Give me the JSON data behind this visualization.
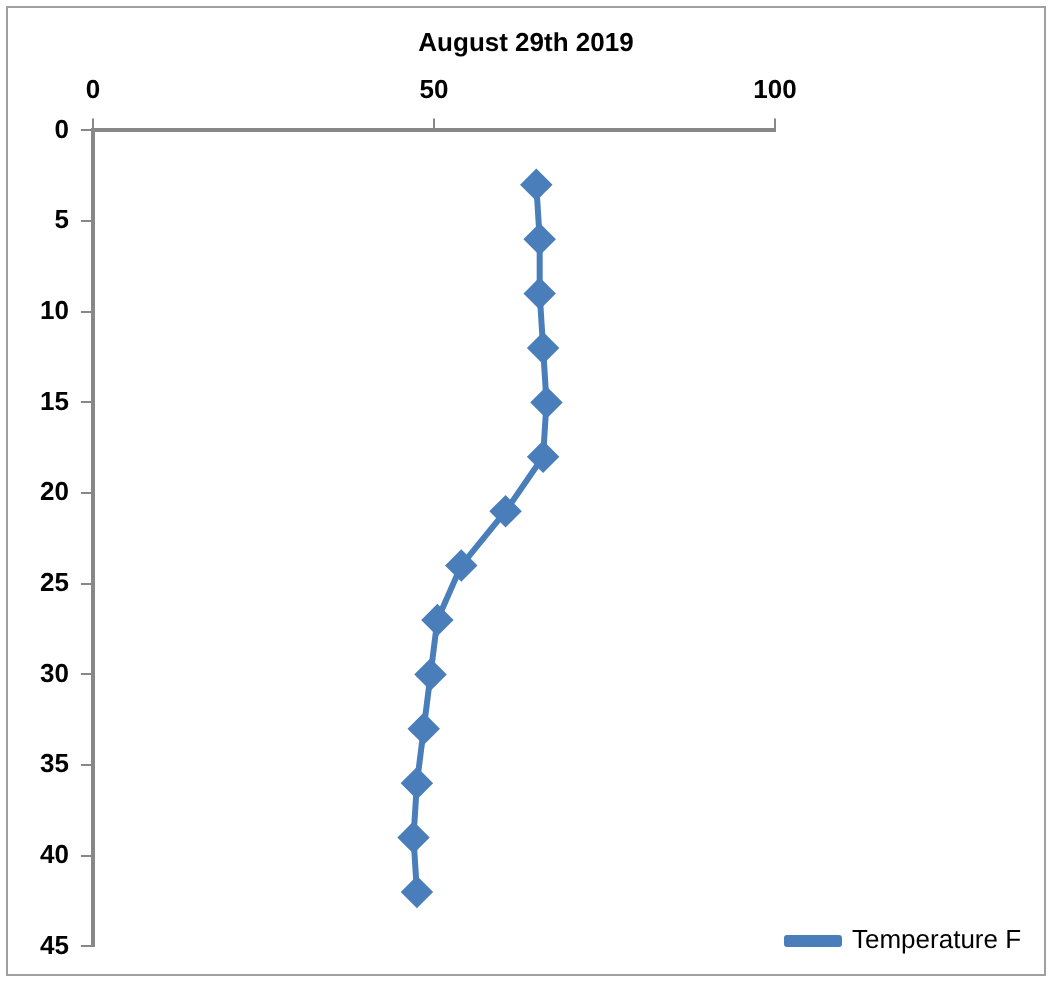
{
  "chart_data": {
    "type": "line",
    "title": "August 29th 2019",
    "series": [
      {
        "name": "Temperature F",
        "color": "#4a7ebb",
        "x": [
          65,
          65.5,
          65.5,
          66,
          66.5,
          66,
          60.5,
          54,
          50.5,
          49.5,
          48.5,
          47.5,
          47,
          47.5
        ],
        "values": [
          3,
          6,
          9,
          12,
          15,
          18,
          21,
          24,
          27,
          30,
          33,
          36,
          39,
          42
        ]
      }
    ],
    "xlim": [
      0,
      100
    ],
    "xticks": [
      0,
      50,
      100
    ],
    "ylim": [
      45,
      0
    ],
    "yticks": [
      0,
      5,
      10,
      15,
      20,
      25,
      30,
      35,
      40,
      45
    ],
    "grid": false,
    "legend": "bottom right",
    "marker": "diamond",
    "line_style": "solid"
  }
}
